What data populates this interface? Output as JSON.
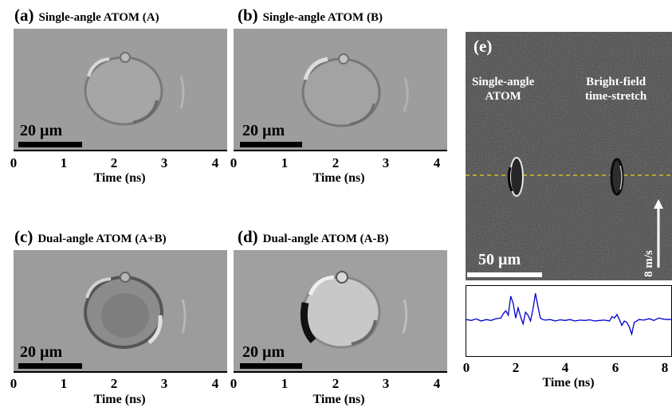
{
  "panels": [
    {
      "letter": "(a)",
      "title": "Single-angle ATOM (A)",
      "scalebar": "20 µm",
      "xlabel": "Time (ns)",
      "ticks": [
        "0",
        "1",
        "2",
        "3",
        "4"
      ]
    },
    {
      "letter": "(b)",
      "title": "Single-angle ATOM (B)",
      "scalebar": "20 µm",
      "xlabel": "Time (ns)",
      "ticks": [
        "0",
        "1",
        "2",
        "3",
        "4"
      ]
    },
    {
      "letter": "(c)",
      "title": "Dual-angle ATOM (A+B)",
      "scalebar": "20 µm",
      "xlabel": "Time (ns)",
      "ticks": [
        "0",
        "1",
        "2",
        "3",
        "4"
      ]
    },
    {
      "letter": "(d)",
      "title": "Dual-angle ATOM (A-B)",
      "scalebar": "20 µm",
      "xlabel": "Time (ns)",
      "ticks": [
        "0",
        "1",
        "2",
        "3",
        "4"
      ]
    }
  ],
  "panel_e": {
    "letter": "(e)",
    "label_left_1": "Single-angle",
    "label_left_2": "ATOM",
    "label_right_1": "Bright-field",
    "label_right_2": "time-stretch",
    "scalebar": "50 µm",
    "velocity": "8 m/s",
    "xlabel": "Time (ns)",
    "ticks": [
      "0",
      "2",
      "4",
      "6",
      "8"
    ],
    "trace_color": "#0000cc",
    "guide_color": "#e6d21a"
  },
  "chart_data": {
    "type": "line",
    "title": "",
    "xlabel": "Time (ns)",
    "ylabel": "",
    "xlim": [
      0,
      8.3
    ],
    "series": [
      {
        "x": [
          0,
          0.2,
          0.4,
          0.6,
          0.8,
          1.0,
          1.2,
          1.4,
          1.5,
          1.6,
          1.7,
          1.8,
          1.9,
          2.0,
          2.1,
          2.2,
          2.3,
          2.4,
          2.5,
          2.6,
          2.7,
          2.8,
          2.9,
          3.0,
          3.1,
          3.2,
          3.4,
          3.6,
          3.8,
          4.0,
          4.2,
          4.4,
          4.6,
          4.8,
          5.0,
          5.2,
          5.4,
          5.6,
          5.8,
          5.9,
          6.0,
          6.1,
          6.2,
          6.3,
          6.4,
          6.5,
          6.6,
          6.7,
          6.8,
          7.0,
          7.2,
          7.4,
          7.6,
          7.8,
          8.0,
          8.3
        ],
        "y": [
          0.05,
          0.02,
          0.07,
          0.0,
          0.05,
          0.02,
          0.08,
          0.1,
          0.25,
          0.35,
          0.2,
          0.85,
          0.6,
          0.1,
          0.45,
          0.15,
          -0.1,
          0.3,
          0.2,
          0.0,
          0.4,
          0.95,
          0.5,
          0.1,
          0.05,
          0.03,
          0.05,
          0.0,
          0.04,
          0.02,
          0.05,
          0.0,
          0.03,
          0.02,
          0.04,
          0.0,
          0.02,
          0.03,
          0.0,
          0.15,
          0.1,
          0.22,
          0.05,
          -0.15,
          0.0,
          -0.05,
          -0.2,
          -0.45,
          -0.05,
          0.05,
          0.03,
          0.08,
          0.02,
          0.1,
          0.06,
          0.05
        ]
      }
    ]
  }
}
